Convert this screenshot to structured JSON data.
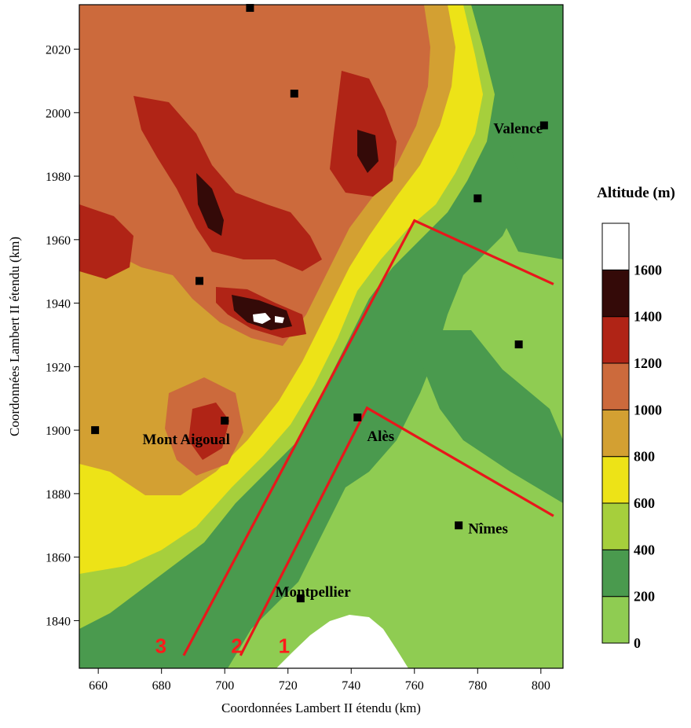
{
  "map": {
    "x_axis_title": "Coordonnées Lambert II étendu (km)",
    "y_axis_title": "Coordonnées Lambert II étendu (km)",
    "x_range": [
      654,
      807
    ],
    "y_range": [
      1825,
      2034
    ],
    "x_ticks": [
      660,
      680,
      700,
      720,
      740,
      760,
      780,
      800
    ],
    "y_ticks": [
      1840,
      1860,
      1880,
      1900,
      1920,
      1940,
      1960,
      1980,
      2000,
      2020
    ]
  },
  "legend": {
    "title": "Altitude (m)",
    "levels": [
      0,
      200,
      400,
      600,
      800,
      1000,
      1200,
      1400,
      1600
    ],
    "colors": [
      "#8fcc52",
      "#4a9a4e",
      "#a6cf3c",
      "#ede317",
      "#d3a032",
      "#cc6a3c",
      "#b02416",
      "#340a08",
      "#ffffff"
    ]
  },
  "cities": [
    {
      "name": "Valence",
      "x": 801,
      "y": 1996
    },
    {
      "name": "Mont Aigoual",
      "x": 700,
      "y": 1903
    },
    {
      "name": "Alès",
      "x": 742,
      "y": 1904
    },
    {
      "name": "Nîmes",
      "x": 774,
      "y": 1870
    },
    {
      "name": "Montpellier",
      "x": 724,
      "y": 1847
    }
  ],
  "cities_labels": [
    {
      "text": "Valence",
      "x": 785,
      "y": 1995
    },
    {
      "text": "Mont Aigoual",
      "x": 674,
      "y": 1897
    },
    {
      "text": "Alès",
      "x": 745,
      "y": 1898
    },
    {
      "text": "Nîmes",
      "x": 777,
      "y": 1869
    },
    {
      "text": "Montpellier",
      "x": 716,
      "y": 1849
    }
  ],
  "other_stations": [
    {
      "x": 708,
      "y": 2033
    },
    {
      "x": 722,
      "y": 2006
    },
    {
      "x": 659,
      "y": 1900
    },
    {
      "x": 692,
      "y": 1947
    },
    {
      "x": 793,
      "y": 1927
    },
    {
      "x": 780,
      "y": 1973
    }
  ],
  "zones": [
    {
      "label": "1",
      "x": 717,
      "y": 1832
    },
    {
      "label": "2",
      "x": 702,
      "y": 1832
    },
    {
      "label": "3",
      "x": 678,
      "y": 1832
    }
  ],
  "zone_boundaries": [
    [
      [
        687,
        1829
      ],
      [
        760,
        1966
      ],
      [
        804,
        1946
      ]
    ],
    [
      [
        705,
        1829
      ],
      [
        745,
        1907
      ],
      [
        804,
        1873
      ]
    ]
  ]
}
